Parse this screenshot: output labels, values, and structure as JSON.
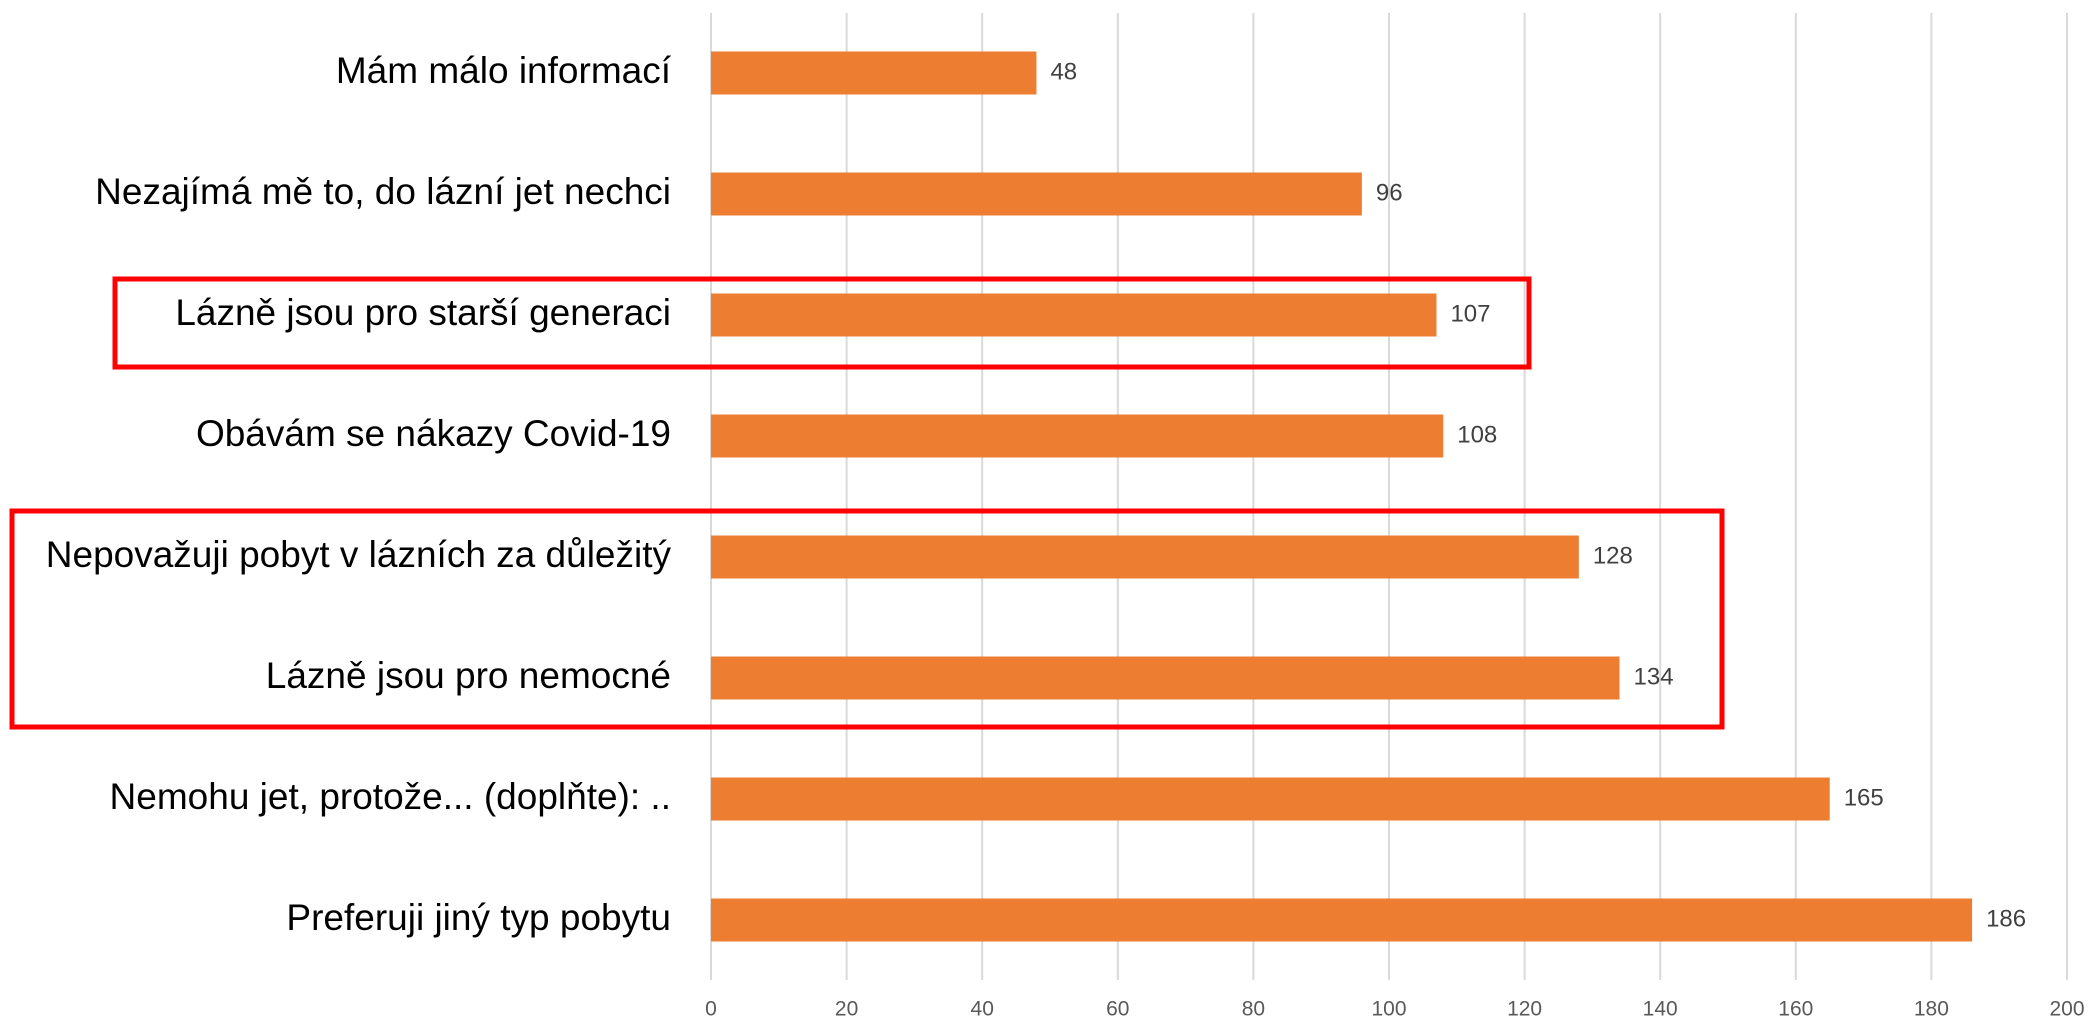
{
  "chart_data": {
    "type": "bar",
    "categories": [
      "Mám málo informací",
      "Nezajímá mě to, do lázní jet nechci",
      "Lázně jsou pro starší generaci",
      "Obávám se nákazy Covid-19",
      "Nepovažuji pobyt v lázních za důležitý",
      "Lázně jsou pro nemocné",
      "Nemohu jet, protože... (doplňte): ..",
      "Preferuji jiný typ pobytu"
    ],
    "values": [
      48,
      96,
      107,
      108,
      128,
      134,
      165,
      186
    ],
    "color": "#ed7d31",
    "xlim": [
      0,
      200
    ],
    "xticks": [
      0,
      20,
      40,
      60,
      80,
      100,
      120,
      140,
      160,
      180,
      200
    ],
    "grid": true
  }
}
